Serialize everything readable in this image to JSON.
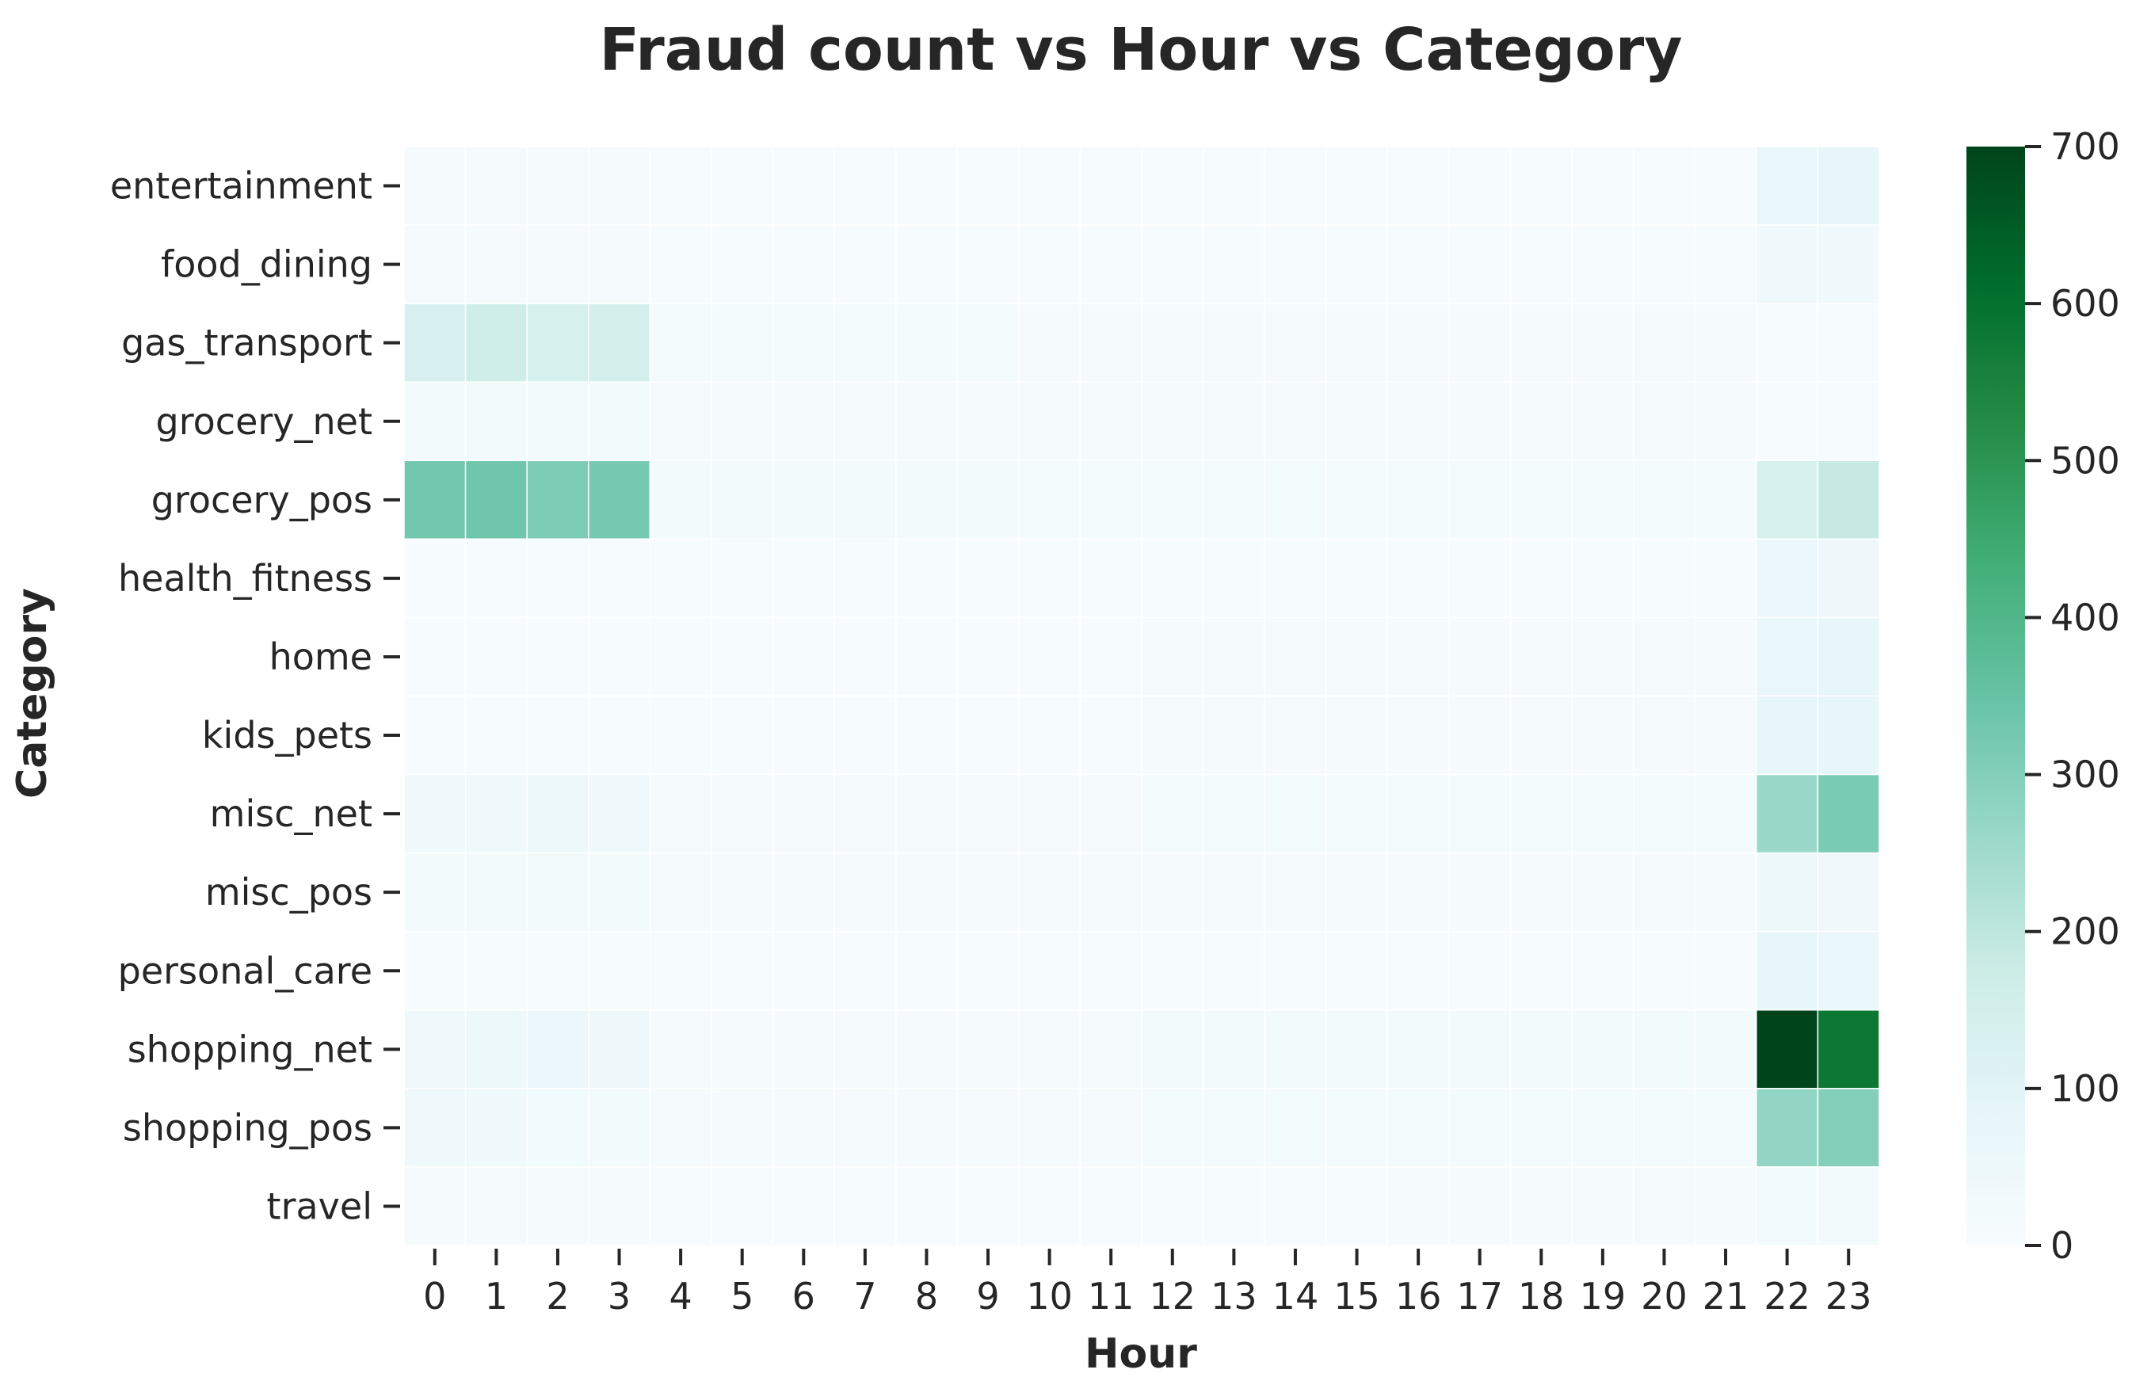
{
  "chart_data": {
    "type": "heatmap",
    "title": "Fraud count vs Hour vs Category",
    "xlabel": "Hour",
    "ylabel": "Category",
    "x": [
      "0",
      "1",
      "2",
      "3",
      "4",
      "5",
      "6",
      "7",
      "8",
      "9",
      "10",
      "11",
      "12",
      "13",
      "14",
      "15",
      "16",
      "17",
      "18",
      "19",
      "20",
      "21",
      "22",
      "23"
    ],
    "y": [
      "entertainment",
      "food_dining",
      "gas_transport",
      "grocery_net",
      "grocery_pos",
      "health_fitness",
      "home",
      "kids_pets",
      "misc_net",
      "misc_pos",
      "personal_care",
      "shopping_net",
      "shopping_pos",
      "travel"
    ],
    "values": [
      [
        12,
        12,
        12,
        12,
        6,
        6,
        6,
        6,
        6,
        6,
        6,
        6,
        6,
        6,
        6,
        6,
        6,
        6,
        6,
        6,
        6,
        6,
        70,
        80
      ],
      [
        8,
        8,
        8,
        8,
        5,
        5,
        5,
        5,
        5,
        5,
        5,
        5,
        5,
        5,
        5,
        5,
        5,
        5,
        5,
        5,
        5,
        5,
        40,
        35
      ],
      [
        135,
        160,
        140,
        145,
        15,
        15,
        15,
        15,
        15,
        15,
        10,
        10,
        10,
        10,
        10,
        10,
        10,
        10,
        10,
        10,
        10,
        10,
        5,
        5
      ],
      [
        22,
        22,
        22,
        22,
        8,
        8,
        8,
        8,
        8,
        8,
        8,
        8,
        8,
        8,
        8,
        8,
        8,
        8,
        8,
        8,
        8,
        8,
        5,
        5
      ],
      [
        330,
        335,
        310,
        320,
        20,
        25,
        20,
        25,
        20,
        20,
        15,
        15,
        15,
        15,
        15,
        15,
        15,
        15,
        15,
        15,
        15,
        15,
        140,
        185
      ],
      [
        5,
        5,
        5,
        5,
        5,
        5,
        5,
        5,
        5,
        5,
        5,
        5,
        5,
        5,
        5,
        5,
        5,
        5,
        5,
        5,
        5,
        5,
        60,
        45
      ],
      [
        5,
        5,
        5,
        5,
        5,
        5,
        5,
        5,
        5,
        5,
        5,
        5,
        10,
        10,
        10,
        10,
        10,
        10,
        10,
        10,
        10,
        10,
        70,
        80
      ],
      [
        5,
        5,
        5,
        5,
        5,
        5,
        5,
        5,
        5,
        5,
        5,
        5,
        10,
        10,
        10,
        10,
        10,
        10,
        10,
        10,
        10,
        10,
        80,
        80
      ],
      [
        35,
        40,
        50,
        40,
        10,
        10,
        10,
        10,
        10,
        10,
        10,
        10,
        15,
        15,
        15,
        15,
        15,
        15,
        15,
        15,
        15,
        15,
        260,
        315
      ],
      [
        25,
        25,
        25,
        20,
        10,
        10,
        10,
        10,
        10,
        10,
        10,
        10,
        10,
        10,
        10,
        10,
        10,
        10,
        10,
        10,
        10,
        10,
        50,
        40
      ],
      [
        5,
        5,
        5,
        5,
        5,
        5,
        5,
        5,
        5,
        5,
        5,
        5,
        5,
        5,
        5,
        5,
        5,
        5,
        5,
        5,
        5,
        5,
        80,
        70
      ],
      [
        40,
        55,
        60,
        45,
        10,
        10,
        10,
        10,
        10,
        10,
        10,
        10,
        20,
        20,
        20,
        20,
        20,
        20,
        20,
        20,
        20,
        20,
        700,
        580
      ],
      [
        40,
        35,
        30,
        25,
        10,
        10,
        10,
        10,
        10,
        10,
        10,
        10,
        15,
        15,
        15,
        15,
        15,
        15,
        15,
        15,
        15,
        15,
        275,
        300
      ],
      [
        8,
        8,
        8,
        8,
        5,
        5,
        5,
        5,
        5,
        5,
        5,
        5,
        5,
        5,
        5,
        5,
        10,
        10,
        10,
        10,
        10,
        10,
        30,
        25
      ]
    ],
    "colorbar": {
      "min": 0,
      "max": 700,
      "ticks": [
        0,
        100,
        200,
        300,
        400,
        500,
        600,
        700
      ],
      "colors": [
        "#f7fcfd",
        "#e5f5f9",
        "#ccece6",
        "#99d8c9",
        "#66c2a4",
        "#41ae76",
        "#238b45",
        "#006d2c",
        "#00441b"
      ]
    },
    "grid": false
  }
}
